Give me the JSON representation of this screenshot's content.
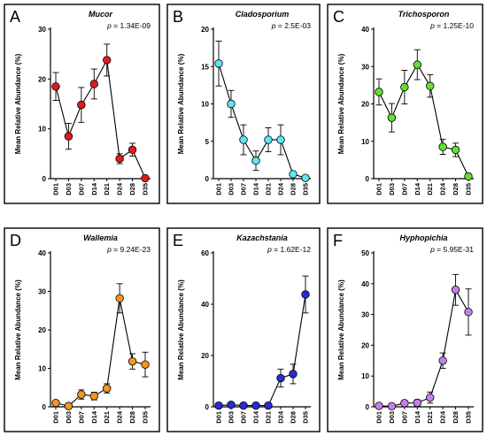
{
  "chart_data": [
    {
      "type": "line",
      "panel_label": "A",
      "title": "Mucor",
      "pvalue_label": "p",
      "pvalue": "= 1.34E-09",
      "ylabel": "Mean Relative Abundance (%)",
      "categories": [
        "D01",
        "D03",
        "D07",
        "D14",
        "D21",
        "D24",
        "D28",
        "D35"
      ],
      "ylim": [
        0,
        30
      ],
      "yticks": [
        0,
        10,
        20,
        30
      ],
      "values": [
        18.5,
        8.5,
        14.8,
        19.0,
        23.8,
        4.0,
        5.8,
        0.1
      ],
      "errors": [
        2.8,
        2.6,
        3.5,
        3.0,
        3.2,
        1.0,
        1.3,
        0.1
      ],
      "color": "#e31a1c"
    },
    {
      "type": "line",
      "panel_label": "B",
      "title": "Cladosporium",
      "pvalue_label": "p",
      "pvalue": "= 2.5E-03",
      "ylabel": "Mean Relative Abundance (%)",
      "categories": [
        "D01",
        "D03",
        "D07",
        "D14",
        "D21",
        "D24",
        "D28",
        "D35"
      ],
      "ylim": [
        0,
        20
      ],
      "yticks": [
        0,
        5,
        10,
        15,
        20
      ],
      "values": [
        15.4,
        10.0,
        5.2,
        2.4,
        5.2,
        5.2,
        0.6,
        0.1
      ],
      "errors": [
        3.0,
        1.8,
        2.0,
        1.3,
        1.6,
        2.0,
        0.2,
        0.1
      ],
      "color": "#5ee6f0"
    },
    {
      "type": "line",
      "panel_label": "C",
      "title": "Trichosporon",
      "pvalue_label": "p",
      "pvalue": "= 1.25E-10",
      "ylabel": "Mean Relative Abundance (%)",
      "categories": [
        "D01",
        "D03",
        "D07",
        "D14",
        "D21",
        "D24",
        "D28",
        "D35"
      ],
      "ylim": [
        0,
        40
      ],
      "yticks": [
        0,
        10,
        20,
        30,
        40
      ],
      "values": [
        23.2,
        16.3,
        24.5,
        30.5,
        24.8,
        8.5,
        7.7,
        0.6
      ],
      "errors": [
        3.5,
        3.8,
        4.5,
        4.0,
        3.0,
        2.0,
        1.8,
        0.2
      ],
      "color": "#66dd33"
    },
    {
      "type": "line",
      "panel_label": "D",
      "title": "Wallemia",
      "pvalue_label": "p",
      "pvalue": "= 9.24E-23",
      "ylabel": "Mean Relative Abundance (%)",
      "categories": [
        "D01",
        "D03",
        "D07",
        "D14",
        "D21",
        "D24",
        "D28",
        "D35"
      ],
      "ylim": [
        0,
        40
      ],
      "yticks": [
        0,
        10,
        20,
        30,
        40
      ],
      "values": [
        1.0,
        0.2,
        3.2,
        2.8,
        4.8,
        28.2,
        11.8,
        11.0
      ],
      "errors": [
        0.5,
        0.2,
        1.2,
        1.0,
        1.2,
        3.8,
        2.0,
        3.2
      ],
      "color": "#f7941d"
    },
    {
      "type": "line",
      "panel_label": "E",
      "title": "Kazachstania",
      "pvalue_label": "p",
      "pvalue": "= 1.62E-12",
      "ylabel": "Mean Relative Abundance (%)",
      "categories": [
        "D01",
        "D03",
        "D07",
        "D14",
        "D21",
        "D24",
        "D28",
        "D35"
      ],
      "ylim": [
        0,
        60
      ],
      "yticks": [
        0,
        20,
        40,
        60
      ],
      "values": [
        0.5,
        0.8,
        0.5,
        0.5,
        0.5,
        11.2,
        12.8,
        43.8
      ],
      "errors": [
        0.3,
        0.5,
        0.3,
        0.3,
        0.3,
        3.5,
        3.8,
        7.2
      ],
      "color": "#2b2bd6"
    },
    {
      "type": "line",
      "panel_label": "F",
      "title": "Hyphopichia",
      "pvalue_label": "p",
      "pvalue": "= 5.95E-31",
      "ylabel": "Mean Relative Abundance (%)",
      "categories": [
        "D01",
        "D03",
        "D07",
        "D14",
        "D21",
        "D24",
        "D28",
        "D35"
      ],
      "ylim": [
        0,
        50
      ],
      "yticks": [
        0,
        10,
        20,
        30,
        40,
        50
      ],
      "values": [
        0.3,
        0.2,
        1.2,
        1.3,
        3.0,
        15.0,
        38.0,
        30.8
      ],
      "errors": [
        0.3,
        0.2,
        0.8,
        1.0,
        1.8,
        2.5,
        5.0,
        7.5
      ],
      "color": "#c47fe8"
    }
  ]
}
